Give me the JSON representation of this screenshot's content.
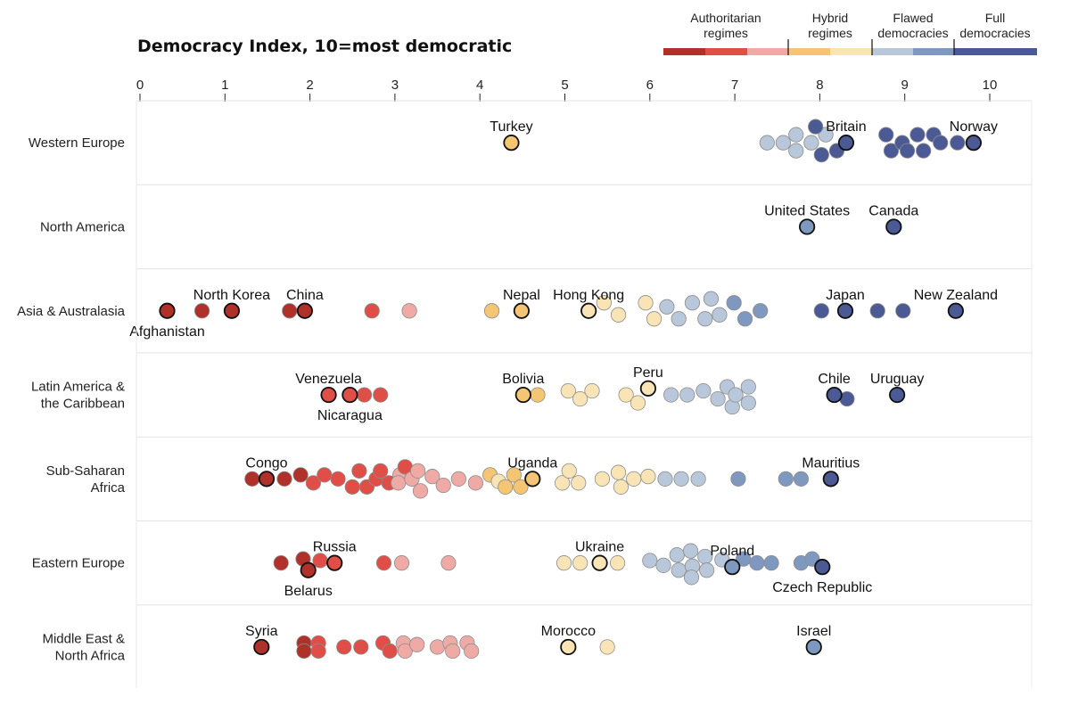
{
  "chart_data": {
    "type": "scatter",
    "title": "Democracy Index, 10=most democratic",
    "xlim": [
      0,
      10
    ],
    "xticks": [
      "0",
      "1",
      "2",
      "3",
      "4",
      "5",
      "6",
      "7",
      "8",
      "9",
      "10"
    ],
    "legend": {
      "placement": "top-right",
      "categories": [
        {
          "lines": [
            "Authoritarian",
            "regimes"
          ]
        },
        {
          "lines": [
            "Hybrid",
            "regimes"
          ]
        },
        {
          "lines": [
            "Flawed",
            "democracies"
          ]
        },
        {
          "lines": [
            "Full",
            "democracies"
          ]
        }
      ]
    },
    "colors": {
      "auth1": "#b0302a",
      "auth2": "#df4f48",
      "auth3": "#efaaa6",
      "hyb1": "#f4c572",
      "hyb2": "#f9e4b6",
      "fl1": "#b9c7db",
      "fl2": "#7e98bf",
      "full": "#4b5a94"
    },
    "regions": [
      {
        "lines": [
          "Western Europe"
        ],
        "points": [
          {
            "x": 4.37,
            "c": "hyb1",
            "label": "Turkey",
            "hl": true
          },
          {
            "x": 7.38,
            "c": "fl1"
          },
          {
            "x": 7.57,
            "c": "fl1"
          },
          {
            "x": 7.72,
            "c": "fl1",
            "o": -1
          },
          {
            "x": 7.72,
            "c": "fl1",
            "o": 1
          },
          {
            "x": 7.9,
            "c": "fl1"
          },
          {
            "x": 8.07,
            "c": "fl1",
            "o": -1
          },
          {
            "x": 7.95,
            "c": "full",
            "o": -2
          },
          {
            "x": 8.02,
            "c": "full",
            "o": 1.5
          },
          {
            "x": 8.2,
            "c": "full",
            "o": 1
          },
          {
            "x": 8.31,
            "c": "full",
            "label": "Britain",
            "hl": true
          },
          {
            "x": 8.78,
            "c": "full",
            "o": -1
          },
          {
            "x": 8.84,
            "c": "full",
            "o": 1
          },
          {
            "x": 8.97,
            "c": "full"
          },
          {
            "x": 9.15,
            "c": "full",
            "o": -1
          },
          {
            "x": 9.03,
            "c": "full",
            "o": 1
          },
          {
            "x": 9.22,
            "c": "full",
            "o": 1
          },
          {
            "x": 9.34,
            "c": "full",
            "o": -1
          },
          {
            "x": 9.42,
            "c": "full"
          },
          {
            "x": 9.62,
            "c": "full"
          },
          {
            "x": 9.81,
            "c": "full",
            "label": "Norway",
            "hl": true
          }
        ]
      },
      {
        "lines": [
          "North America"
        ],
        "points": [
          {
            "x": 7.85,
            "c": "fl2",
            "label": "United States",
            "hl": true
          },
          {
            "x": 8.87,
            "c": "full",
            "label": "Canada",
            "hl": true
          }
        ]
      },
      {
        "lines": [
          "Asia & Australasia"
        ],
        "points": [
          {
            "x": 0.32,
            "c": "auth1",
            "label": "Afghanistan",
            "below": true,
            "hl": true
          },
          {
            "x": 0.73,
            "c": "auth1"
          },
          {
            "x": 1.08,
            "c": "auth1",
            "label": "North Korea",
            "hl": true
          },
          {
            "x": 1.76,
            "c": "auth1"
          },
          {
            "x": 1.94,
            "c": "auth1",
            "label": "China",
            "hl": true
          },
          {
            "x": 2.73,
            "c": "auth2"
          },
          {
            "x": 3.17,
            "c": "auth3"
          },
          {
            "x": 4.14,
            "c": "hyb1"
          },
          {
            "x": 4.49,
            "c": "hyb1",
            "label": "Nepal",
            "hl": true
          },
          {
            "x": 5.28,
            "c": "hyb2",
            "label": "Hong Kong",
            "hl": true
          },
          {
            "x": 5.46,
            "c": "hyb2",
            "o": -1
          },
          {
            "x": 5.63,
            "c": "hyb2",
            "o": 0.5
          },
          {
            "x": 5.95,
            "c": "hyb2",
            "o": -1
          },
          {
            "x": 6.05,
            "c": "hyb2",
            "o": 1
          },
          {
            "x": 6.2,
            "c": "fl1",
            "o": -0.5
          },
          {
            "x": 6.34,
            "c": "fl1",
            "o": 1
          },
          {
            "x": 6.5,
            "c": "fl1",
            "o": -1
          },
          {
            "x": 6.65,
            "c": "fl1",
            "o": 1
          },
          {
            "x": 6.72,
            "c": "fl1",
            "o": -1.5
          },
          {
            "x": 6.82,
            "c": "fl1",
            "o": 0.5
          },
          {
            "x": 6.99,
            "c": "fl2",
            "o": -1
          },
          {
            "x": 7.12,
            "c": "fl2",
            "o": 1
          },
          {
            "x": 7.3,
            "c": "fl2"
          },
          {
            "x": 8.02,
            "c": "full"
          },
          {
            "x": 8.3,
            "c": "full",
            "label": "Japan",
            "hl": true
          },
          {
            "x": 8.68,
            "c": "full"
          },
          {
            "x": 8.98,
            "c": "full"
          },
          {
            "x": 9.6,
            "c": "full",
            "label": "New Zealand",
            "hl": true
          }
        ]
      },
      {
        "lines": [
          "Latin America &",
          "the Caribbean"
        ],
        "points": [
          {
            "x": 2.22,
            "c": "auth2",
            "label": "Venezuela",
            "hl": true
          },
          {
            "x": 2.47,
            "c": "auth2",
            "label": "Nicaragua",
            "below": true,
            "hl": true
          },
          {
            "x": 2.64,
            "c": "auth2"
          },
          {
            "x": 2.83,
            "c": "auth2"
          },
          {
            "x": 4.51,
            "c": "hyb1",
            "label": "Bolivia",
            "hl": true
          },
          {
            "x": 4.68,
            "c": "hyb1"
          },
          {
            "x": 5.04,
            "c": "hyb2",
            "o": -0.5
          },
          {
            "x": 5.18,
            "c": "hyb2",
            "o": 0.5
          },
          {
            "x": 5.32,
            "c": "hyb2",
            "o": -0.5
          },
          {
            "x": 5.72,
            "c": "hyb2"
          },
          {
            "x": 5.86,
            "c": "hyb2",
            "o": 1
          },
          {
            "x": 5.98,
            "c": "hyb2",
            "label": "Peru",
            "o": -0.8,
            "hl": true
          },
          {
            "x": 6.25,
            "c": "fl1"
          },
          {
            "x": 6.44,
            "c": "fl1"
          },
          {
            "x": 6.63,
            "c": "fl1",
            "o": -0.5
          },
          {
            "x": 6.8,
            "c": "fl1",
            "o": 0.5
          },
          {
            "x": 6.91,
            "c": "fl1",
            "o": -1
          },
          {
            "x": 6.97,
            "c": "fl1",
            "o": 1.5
          },
          {
            "x": 7.01,
            "c": "fl1"
          },
          {
            "x": 7.16,
            "c": "fl1",
            "o": -1
          },
          {
            "x": 7.16,
            "c": "fl1",
            "o": 1
          },
          {
            "x": 8.17,
            "c": "full",
            "label": "Chile",
            "hl": true
          },
          {
            "x": 8.32,
            "c": "full",
            "o": 0.5
          },
          {
            "x": 8.91,
            "c": "full",
            "label": "Uruguay",
            "hl": true
          }
        ]
      },
      {
        "lines": [
          "Sub-Saharan",
          "Africa"
        ],
        "points": [
          {
            "x": 1.32,
            "c": "auth1"
          },
          {
            "x": 1.49,
            "c": "auth1",
            "label": "Congo",
            "hl": true
          },
          {
            "x": 1.7,
            "c": "auth1"
          },
          {
            "x": 1.89,
            "c": "auth1",
            "o": -0.5
          },
          {
            "x": 2.04,
            "c": "auth2",
            "o": 0.5
          },
          {
            "x": 2.17,
            "c": "auth2",
            "o": -0.5
          },
          {
            "x": 2.33,
            "c": "auth2"
          },
          {
            "x": 2.5,
            "c": "auth2",
            "o": 1
          },
          {
            "x": 2.58,
            "c": "auth2",
            "o": -1
          },
          {
            "x": 2.67,
            "c": "auth2",
            "o": 1
          },
          {
            "x": 2.78,
            "c": "auth2"
          },
          {
            "x": 2.83,
            "c": "auth2",
            "o": -1
          },
          {
            "x": 2.93,
            "c": "auth2",
            "o": 0.5
          },
          {
            "x": 3.06,
            "c": "auth3",
            "o": -0.5
          },
          {
            "x": 3.04,
            "c": "auth3",
            "o": 0.5
          },
          {
            "x": 3.12,
            "c": "auth2",
            "o": -1.5
          },
          {
            "x": 3.2,
            "c": "auth3",
            "o": 0
          },
          {
            "x": 3.27,
            "c": "auth3",
            "o": -1
          },
          {
            "x": 3.3,
            "c": "auth3",
            "o": 1.5
          },
          {
            "x": 3.44,
            "c": "auth3",
            "o": -0.3
          },
          {
            "x": 3.57,
            "c": "auth3",
            "o": 0.8
          },
          {
            "x": 3.75,
            "c": "auth3"
          },
          {
            "x": 3.95,
            "c": "auth3",
            "o": 0.5
          },
          {
            "x": 4.12,
            "c": "hyb1",
            "o": -0.5
          },
          {
            "x": 4.22,
            "c": "hyb2",
            "o": 0.3
          },
          {
            "x": 4.3,
            "c": "hyb1",
            "o": 1
          },
          {
            "x": 4.4,
            "c": "hyb1",
            "o": -0.5
          },
          {
            "x": 4.48,
            "c": "hyb1",
            "o": 1
          },
          {
            "x": 4.62,
            "c": "hyb1",
            "label": "Uganda",
            "hl": true
          },
          {
            "x": 4.97,
            "c": "hyb2",
            "o": 0.5
          },
          {
            "x": 5.05,
            "c": "hyb2",
            "o": -1
          },
          {
            "x": 5.16,
            "c": "hyb2",
            "o": 0.5
          },
          {
            "x": 5.44,
            "c": "hyb2"
          },
          {
            "x": 5.63,
            "c": "hyb2",
            "o": -0.8
          },
          {
            "x": 5.66,
            "c": "hyb2",
            "o": 1
          },
          {
            "x": 5.81,
            "c": "hyb2"
          },
          {
            "x": 5.98,
            "c": "hyb2",
            "o": -0.3
          },
          {
            "x": 6.18,
            "c": "fl1"
          },
          {
            "x": 6.37,
            "c": "fl1"
          },
          {
            "x": 6.57,
            "c": "fl1"
          },
          {
            "x": 7.04,
            "c": "fl2"
          },
          {
            "x": 7.6,
            "c": "fl2"
          },
          {
            "x": 7.78,
            "c": "fl2"
          },
          {
            "x": 8.13,
            "c": "full",
            "label": "Mauritius",
            "hl": true
          }
        ]
      },
      {
        "lines": [
          "Eastern Europe"
        ],
        "points": [
          {
            "x": 1.66,
            "c": "auth1"
          },
          {
            "x": 1.92,
            "c": "auth1",
            "o": -0.5
          },
          {
            "x": 1.98,
            "c": "auth1",
            "label": "Belarus",
            "below": true,
            "o": 0.9,
            "hl": true
          },
          {
            "x": 2.12,
            "c": "auth2",
            "o": -0.3
          },
          {
            "x": 2.29,
            "c": "auth2",
            "label": "Russia",
            "hl": true
          },
          {
            "x": 2.87,
            "c": "auth2"
          },
          {
            "x": 3.08,
            "c": "auth3"
          },
          {
            "x": 3.63,
            "c": "auth3"
          },
          {
            "x": 4.99,
            "c": "hyb2"
          },
          {
            "x": 5.18,
            "c": "hyb2"
          },
          {
            "x": 5.41,
            "c": "hyb2",
            "label": "Ukraine",
            "hl": true
          },
          {
            "x": 5.62,
            "c": "hyb2"
          },
          {
            "x": 6.0,
            "c": "fl1",
            "o": -0.3
          },
          {
            "x": 6.16,
            "c": "fl1",
            "o": 0.3
          },
          {
            "x": 6.32,
            "c": "fl1",
            "o": -1
          },
          {
            "x": 6.34,
            "c": "fl1",
            "o": 0.9
          },
          {
            "x": 6.48,
            "c": "fl1",
            "o": -1.5
          },
          {
            "x": 6.5,
            "c": "fl1",
            "o": 0.4
          },
          {
            "x": 6.49,
            "c": "fl1",
            "o": 1.8
          },
          {
            "x": 6.65,
            "c": "fl1",
            "o": -0.8
          },
          {
            "x": 6.67,
            "c": "fl1",
            "o": 0.9
          },
          {
            "x": 6.85,
            "c": "fl1",
            "o": -0.4
          },
          {
            "x": 7.1,
            "c": "fl2",
            "o": -0.5
          },
          {
            "x": 6.97,
            "c": "fl2",
            "label": "Poland",
            "o": 0.5,
            "hl": true
          },
          {
            "x": 7.26,
            "c": "fl2"
          },
          {
            "x": 7.43,
            "c": "fl2"
          },
          {
            "x": 7.78,
            "c": "fl2"
          },
          {
            "x": 7.91,
            "c": "fl2",
            "o": -0.5
          },
          {
            "x": 8.03,
            "c": "full",
            "label": "Czech Republic",
            "below": true,
            "o": 0.5,
            "hl": true
          }
        ]
      },
      {
        "lines": [
          "Middle East &",
          "North Africa"
        ],
        "points": [
          {
            "x": 1.43,
            "c": "auth1",
            "label": "Syria",
            "hl": true
          },
          {
            "x": 1.93,
            "c": "auth1",
            "o": -0.5
          },
          {
            "x": 1.93,
            "c": "auth1",
            "o": 0.5
          },
          {
            "x": 2.1,
            "c": "auth2",
            "o": -0.5
          },
          {
            "x": 2.1,
            "c": "auth2",
            "o": 0.5
          },
          {
            "x": 2.4,
            "c": "auth2"
          },
          {
            "x": 2.6,
            "c": "auth2"
          },
          {
            "x": 2.86,
            "c": "auth2",
            "o": -0.5
          },
          {
            "x": 2.94,
            "c": "auth2",
            "o": 0.5
          },
          {
            "x": 3.1,
            "c": "auth3",
            "o": -0.5
          },
          {
            "x": 3.12,
            "c": "auth3",
            "o": 0.5
          },
          {
            "x": 3.26,
            "c": "auth3",
            "o": -0.3
          },
          {
            "x": 3.5,
            "c": "auth3"
          },
          {
            "x": 3.65,
            "c": "auth3",
            "o": -0.5
          },
          {
            "x": 3.68,
            "c": "auth3",
            "o": 0.5
          },
          {
            "x": 3.85,
            "c": "auth3",
            "o": -0.5
          },
          {
            "x": 3.9,
            "c": "auth3",
            "o": 0.5
          },
          {
            "x": 5.04,
            "c": "hyb2",
            "label": "Morocco",
            "hl": true
          },
          {
            "x": 5.5,
            "c": "hyb2"
          },
          {
            "x": 7.93,
            "c": "fl2",
            "label": "Israel",
            "hl": true
          }
        ]
      }
    ]
  }
}
